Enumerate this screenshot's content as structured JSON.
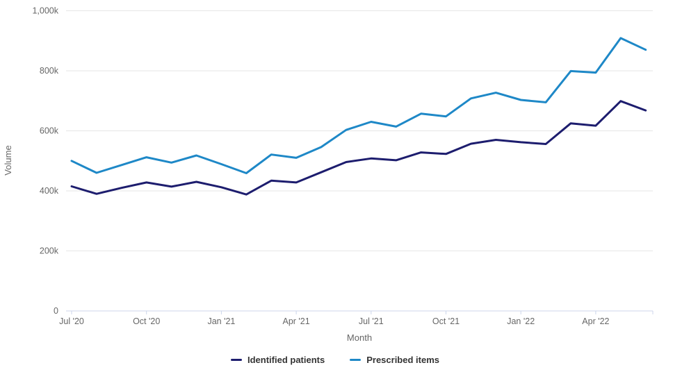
{
  "chart_data": {
    "type": "line",
    "xlabel": "Month",
    "ylabel": "Volume",
    "values_unit": "thousands (k)",
    "x": [
      "Jul '20",
      "Aug '20",
      "Sep '20",
      "Oct '20",
      "Nov '20",
      "Dec '20",
      "Jan '21",
      "Feb '21",
      "Mar '21",
      "Apr '21",
      "May '21",
      "Jun '21",
      "Jul '21",
      "Aug '21",
      "Sep '21",
      "Oct '21",
      "Nov '21",
      "Dec '21",
      "Jan '22",
      "Feb '22",
      "Mar '22",
      "Apr '22",
      "May '22",
      "Jun '22"
    ],
    "x_tick_indices": [
      0,
      3,
      6,
      9,
      12,
      15,
      18,
      21
    ],
    "x_tick_labels": [
      "Jul '20",
      "Oct '20",
      "Jan '21",
      "Apr '21",
      "Jul '21",
      "Oct '21",
      "Jan '22",
      "Apr '22"
    ],
    "y_ticks": [
      0,
      200,
      400,
      600,
      800,
      1000
    ],
    "y_tick_labels": [
      "0",
      "200k",
      "400k",
      "600k",
      "800k",
      "1,000k"
    ],
    "ylim": [
      0,
      1000
    ],
    "grid": true,
    "legend_position": "bottom",
    "series": [
      {
        "name": "Identified patients",
        "color": "#1d1d6e",
        "values": [
          415,
          390,
          410,
          428,
          414,
          430,
          412,
          388,
          434,
          428,
          462,
          496,
          508,
          502,
          528,
          523,
          557,
          570,
          562,
          556,
          625,
          617,
          699,
          668
        ]
      },
      {
        "name": "Prescribed items",
        "color": "#1e88c7",
        "values": [
          500,
          460,
          486,
          512,
          494,
          518,
          489,
          459,
          521,
          510,
          546,
          603,
          630,
          614,
          657,
          648,
          708,
          727,
          703,
          695,
          799,
          794,
          909,
          870
        ]
      }
    ],
    "style": {
      "grid_color": "#e6e6e6",
      "axis_line_color": "#ccd6eb",
      "tick_label_color": "#666666",
      "axis_title_color": "#666666",
      "legend_text_color": "#333333",
      "background": "#ffffff",
      "line_width": 3
    }
  }
}
